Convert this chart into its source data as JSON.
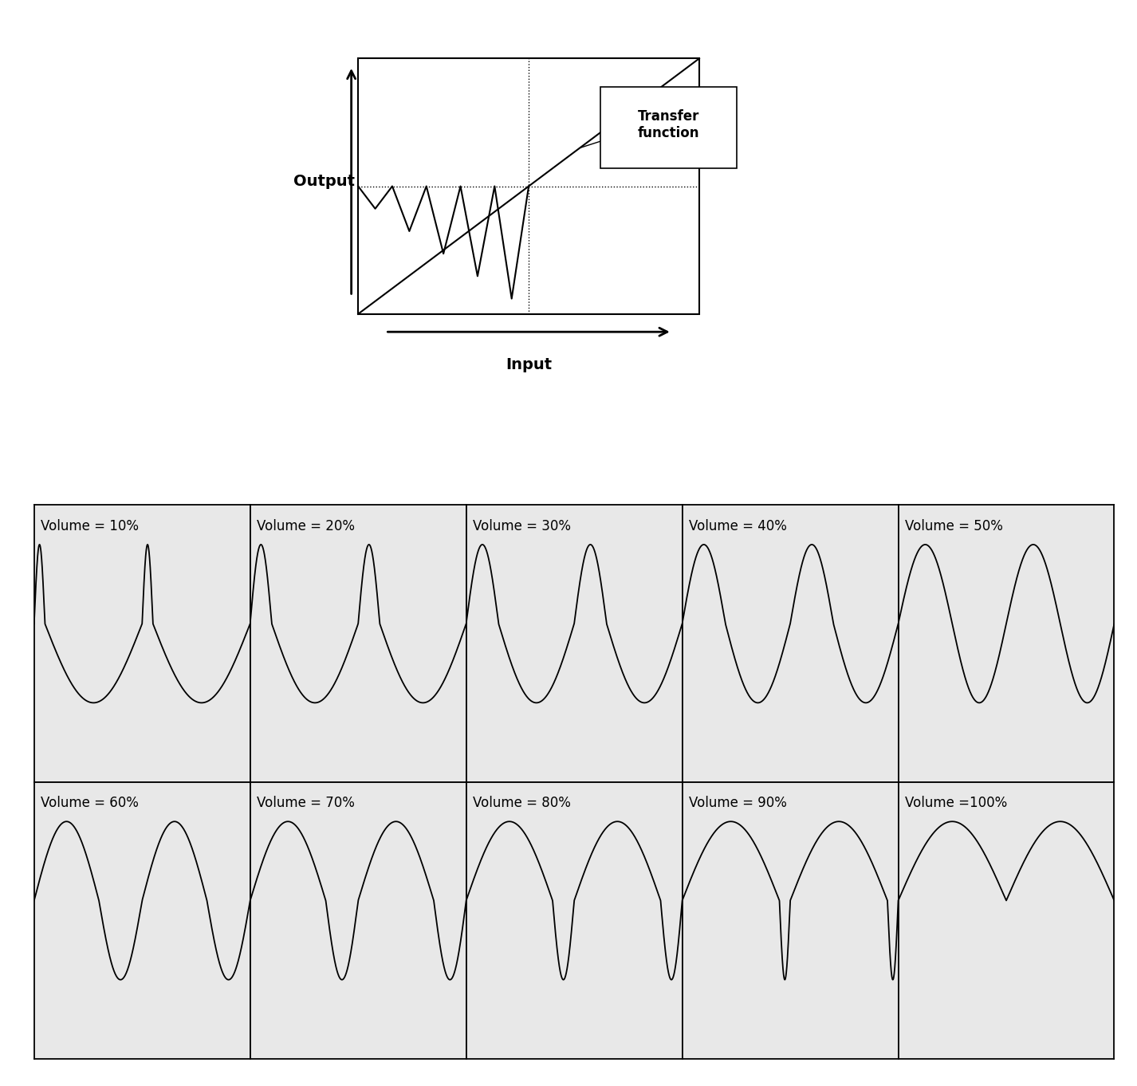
{
  "bg_color": "#ffffff",
  "cell_bg": "#e8e8e8",
  "grid_color": "#000000",
  "output_label": "Output",
  "input_label": "Input",
  "transfer_label": "Transfer\nfunction",
  "volumes": [
    10,
    20,
    30,
    40,
    50,
    60,
    70,
    80,
    90,
    100
  ],
  "grid_rows": 2,
  "grid_cols": 5,
  "label_fontsize": 12,
  "axis_fontsize": 14
}
